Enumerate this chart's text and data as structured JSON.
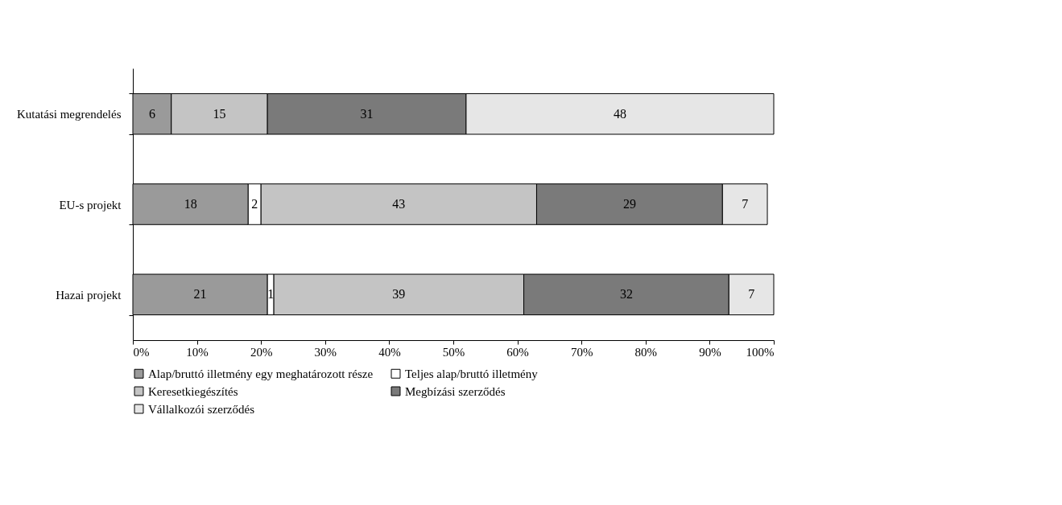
{
  "chart_data": {
    "type": "bar",
    "orientation": "horizontal",
    "stacked": true,
    "categories": [
      "Kutatási megrendelés",
      "EU-s projekt",
      "Hazai projekt"
    ],
    "series": [
      {
        "name": "Alap/bruttó illetmény egy meghatározott része",
        "color": "#9a9a9a",
        "values": [
          6,
          18,
          21
        ],
        "value_labels": [
          "6",
          "18",
          "21"
        ]
      },
      {
        "name": "Teljes alap/bruttó illetmény",
        "color": "#ffffff",
        "values": [
          0,
          2,
          1
        ],
        "value_labels": [
          null,
          "2",
          "1"
        ]
      },
      {
        "name": "Keresetkiegészítés",
        "color": "#c4c4c4",
        "values": [
          15,
          43,
          39
        ],
        "value_labels": [
          "15",
          "43",
          "39"
        ]
      },
      {
        "name": "Megbízási szerződés",
        "color": "#7a7a7a",
        "values": [
          31,
          29,
          32
        ],
        "value_labels": [
          "31",
          "29",
          "32"
        ]
      },
      {
        "name": "Vállalkozói szerződés",
        "color": "#e6e6e6",
        "values": [
          48,
          7,
          7
        ],
        "value_labels": [
          "48",
          "7",
          "7"
        ]
      }
    ],
    "xlim": [
      0,
      100
    ],
    "xticks": [
      {
        "value": 0,
        "label": "0%"
      },
      {
        "value": 10,
        "label": "10%"
      },
      {
        "value": 20,
        "label": "20%"
      },
      {
        "value": 30,
        "label": "30%"
      },
      {
        "value": 40,
        "label": "40%"
      },
      {
        "value": 50,
        "label": "50%"
      },
      {
        "value": 60,
        "label": "60%"
      },
      {
        "value": 70,
        "label": "70%"
      },
      {
        "value": 80,
        "label": "80%"
      },
      {
        "value": 90,
        "label": "90%"
      },
      {
        "value": 100,
        "label": "100%"
      }
    ],
    "legend": "bottom",
    "grid": false
  }
}
